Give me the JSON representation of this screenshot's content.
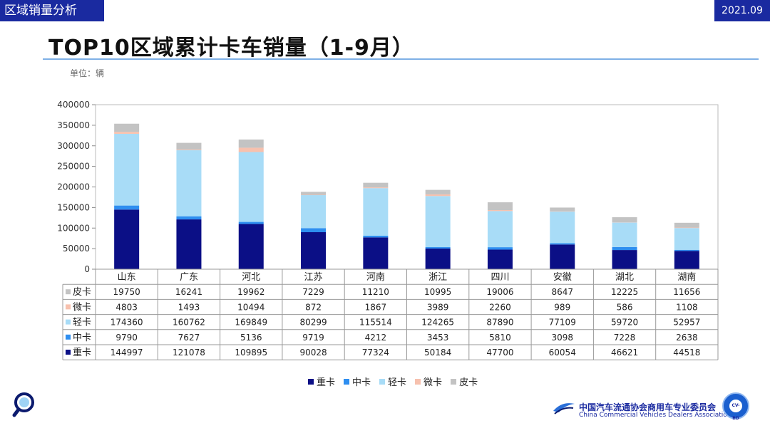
{
  "header": {
    "section": "区域销量分析",
    "date": "2021.09"
  },
  "title": "TOP10区域累计卡车销量（1-9月）",
  "unit": "单位：辆",
  "colors": {
    "重卡": "#0b0f86",
    "中卡": "#2e8ef0",
    "轻卡": "#a8dcf7",
    "微卡": "#f7c1ae",
    "皮卡": "#c3c3c3"
  },
  "chart_data": {
    "type": "bar",
    "stacked": true,
    "categories": [
      "山东",
      "广东",
      "河北",
      "江苏",
      "河南",
      "浙江",
      "四川",
      "安徽",
      "湖北",
      "湖南"
    ],
    "series": [
      {
        "name": "重卡",
        "values": [
          144997,
          121078,
          109895,
          90028,
          77324,
          50184,
          47700,
          60054,
          46621,
          44518
        ]
      },
      {
        "name": "中卡",
        "values": [
          9790,
          7627,
          5136,
          9719,
          4212,
          3453,
          5810,
          3098,
          7228,
          2638
        ]
      },
      {
        "name": "轻卡",
        "values": [
          174360,
          160762,
          169849,
          80299,
          115514,
          124265,
          87890,
          77109,
          59720,
          52957
        ]
      },
      {
        "name": "微卡",
        "values": [
          4803,
          1493,
          10494,
          872,
          1867,
          3989,
          2260,
          989,
          586,
          1108
        ]
      },
      {
        "name": "皮卡",
        "values": [
          19750,
          16241,
          19962,
          7229,
          11210,
          10995,
          19006,
          8647,
          12225,
          11656
        ]
      }
    ],
    "table_row_order": [
      "皮卡",
      "微卡",
      "轻卡",
      "中卡",
      "重卡"
    ],
    "ylim": [
      0,
      400000
    ],
    "yticks": [
      0,
      50000,
      100000,
      150000,
      200000,
      250000,
      300000,
      350000,
      400000
    ],
    "legend_position": "bottom",
    "data_table": true
  },
  "footer": {
    "org_cn": "中国汽车流通协会商用车专业委员会",
    "org_en": "China Commercial Vehicles Dealers Association",
    "badge": "CV-BD"
  }
}
